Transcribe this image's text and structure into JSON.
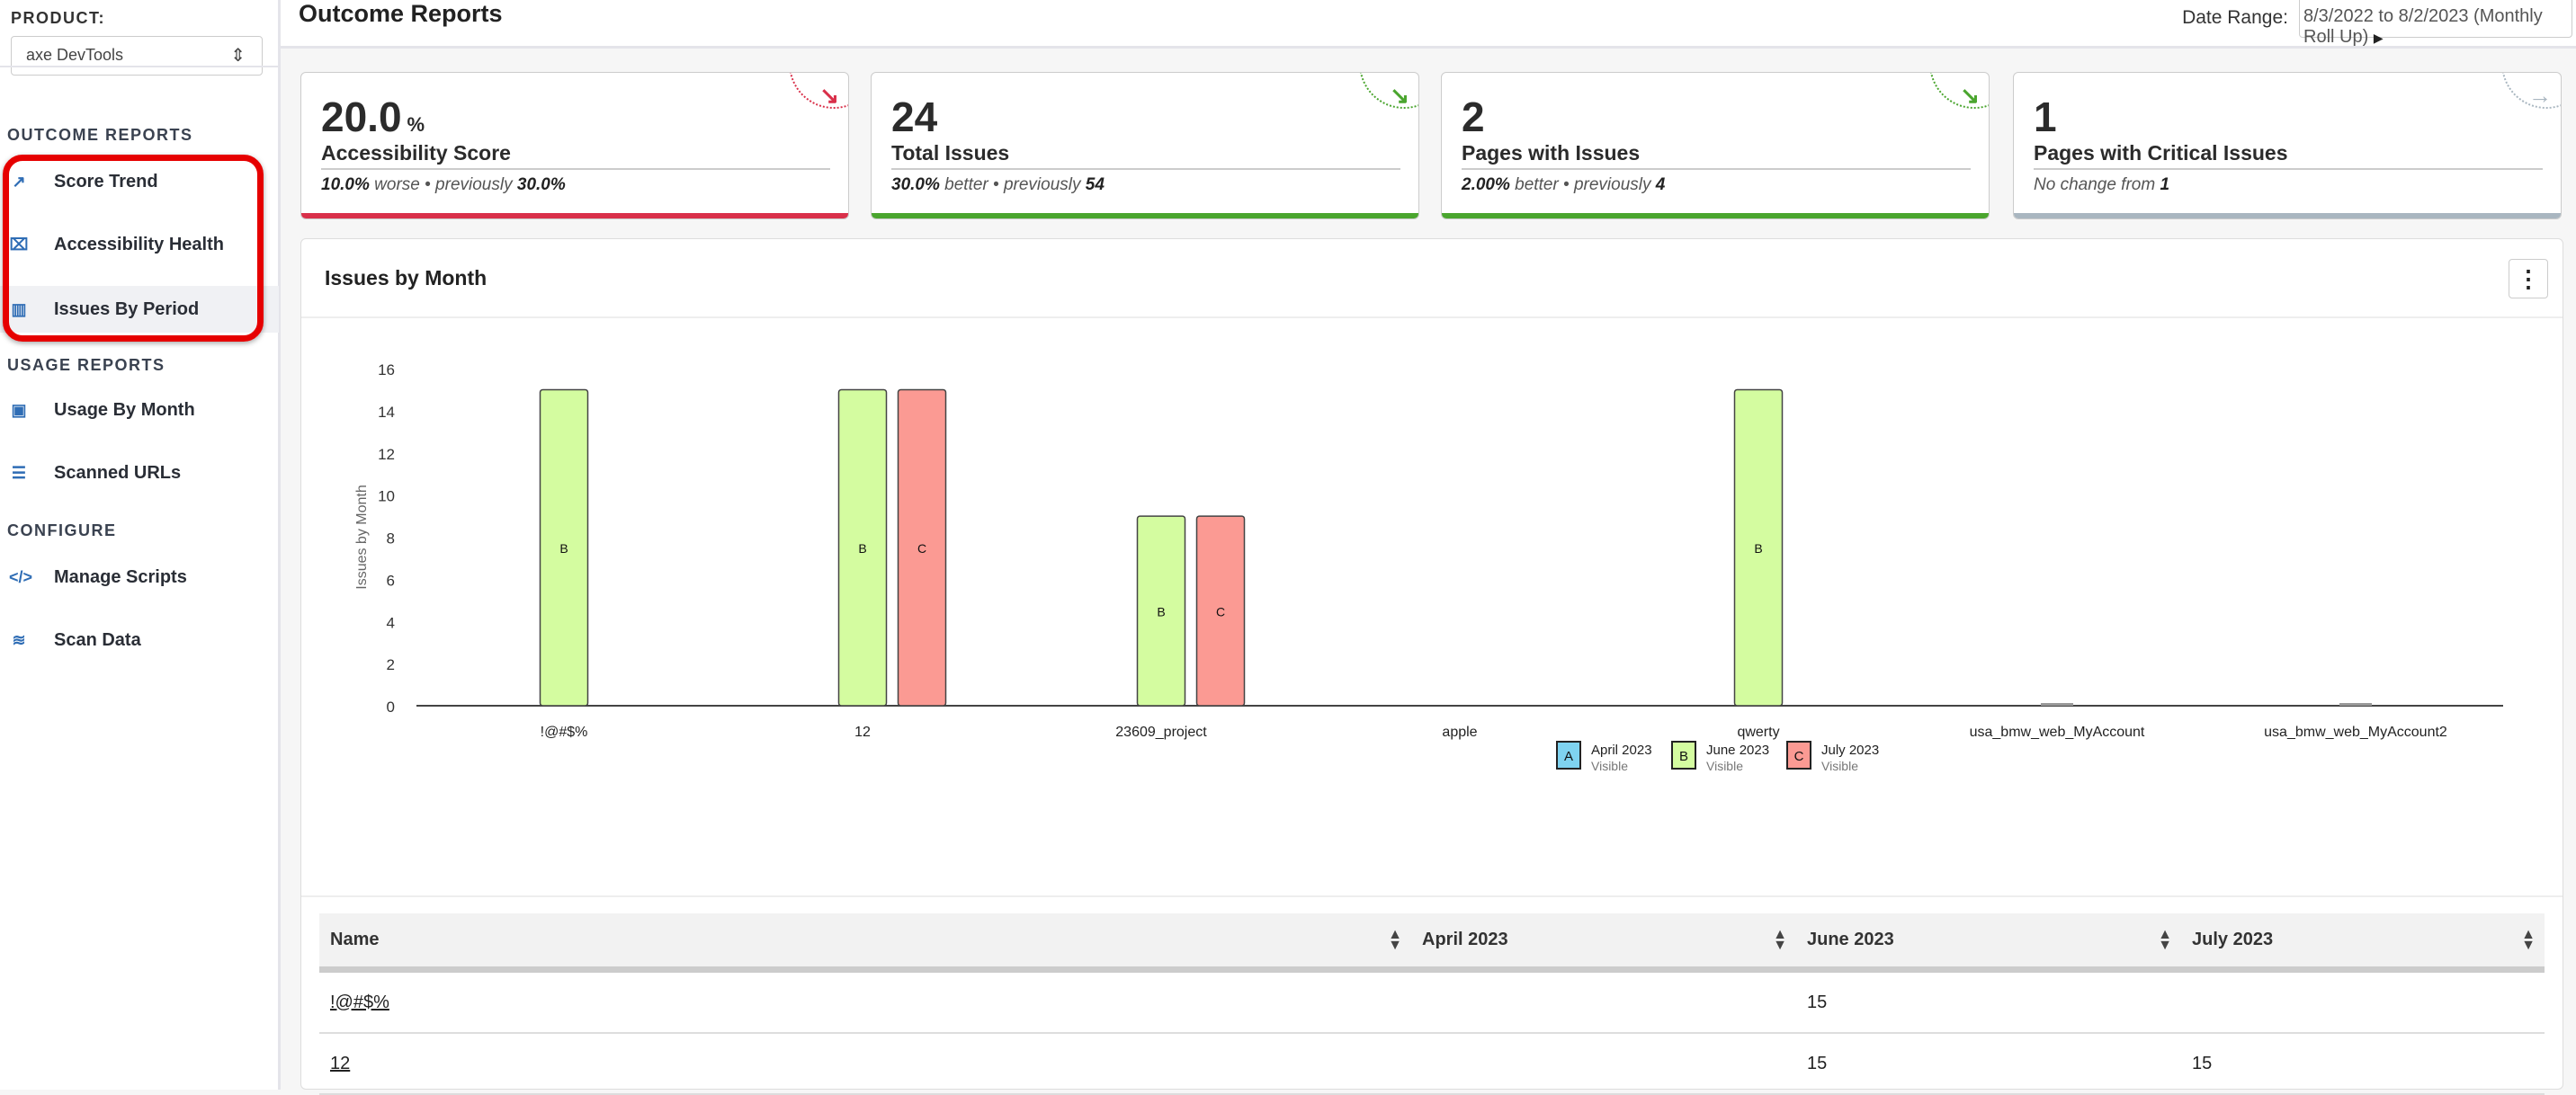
{
  "sidebar": {
    "product_label": "PRODUCT:",
    "product_value": "axe DevTools",
    "sections": [
      {
        "label": "OUTCOME REPORTS"
      },
      {
        "label": "USAGE REPORTS"
      },
      {
        "label": "CONFIGURE"
      }
    ],
    "items": [
      {
        "label": "Score Trend",
        "icon": "trend-icon"
      },
      {
        "label": "Accessibility Health",
        "icon": "presentation-chart-icon"
      },
      {
        "label": "Issues By Period",
        "icon": "bar-chart-icon"
      },
      {
        "label": "Usage By Month",
        "icon": "usage-chart-icon"
      },
      {
        "label": "Scanned URLs",
        "icon": "table-icon"
      },
      {
        "label": "Manage Scripts",
        "icon": "code-icon"
      },
      {
        "label": "Scan Data",
        "icon": "database-icon"
      }
    ]
  },
  "header": {
    "title": "Outcome Reports",
    "date_range_label": "Date Range:",
    "date_range_value": "8/3/2022 to 8/2/2023 (Monthly Roll Up)"
  },
  "cards": [
    {
      "value": "20.0",
      "unit": "%",
      "label": "Accessibility Score",
      "change": "10.0%",
      "direction": "worse",
      "sep": " • previously ",
      "previous": "30.0%",
      "color": "#d9304a"
    },
    {
      "value": "24",
      "label": "Total Issues",
      "change": "30.0%",
      "direction": "better",
      "sep": " • previously ",
      "previous": "54",
      "color": "#4aa52e"
    },
    {
      "value": "2",
      "label": "Pages with Issues",
      "change": "2.00%",
      "direction": "better",
      "sep": " • previously ",
      "previous": "4",
      "color": "#4aa52e"
    },
    {
      "value": "1",
      "label": "Pages with Critical Issues",
      "nochange": "No change from ",
      "previous": "1",
      "color": "#a9b6c0"
    }
  ],
  "panel": {
    "title": "Issues by Month"
  },
  "chart_data": {
    "type": "bar",
    "title": "Issues by Month",
    "ylabel": "Issues by Month",
    "xlabel": "",
    "ylim": [
      0,
      16
    ],
    "yticks": [
      0,
      2,
      4,
      6,
      8,
      10,
      12,
      14,
      16
    ],
    "categories": [
      "!@#$%",
      "12",
      "23609_project",
      "apple",
      "qwerty",
      "usa_bmw_web_MyAccount",
      "usa_bmw_web_MyAccount2"
    ],
    "series": [
      {
        "name": "April 2023",
        "key": "A",
        "status": "Visible",
        "color": "#7fd3f0",
        "values": [
          0,
          0,
          0,
          0,
          0,
          0,
          0
        ]
      },
      {
        "name": "June 2023",
        "key": "B",
        "status": "Visible",
        "color": "#d4fca0",
        "values": [
          15,
          15,
          9,
          0,
          15,
          0,
          0
        ]
      },
      {
        "name": "July 2023",
        "key": "C",
        "status": "Visible",
        "color": "#fb9a93",
        "values": [
          0,
          15,
          9,
          0,
          0,
          0,
          0
        ]
      }
    ],
    "legend": "bottom-center"
  },
  "table": {
    "columns": [
      "Name",
      "April 2023",
      "June 2023",
      "July 2023"
    ],
    "rows": [
      [
        "!@#$%",
        "",
        "15",
        ""
      ],
      [
        "12",
        "",
        "15",
        "15"
      ]
    ]
  }
}
